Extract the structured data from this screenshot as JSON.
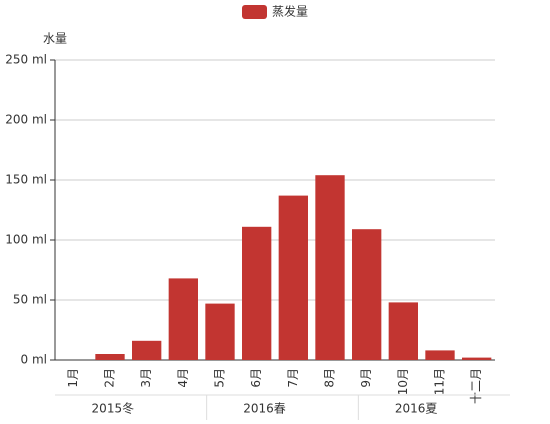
{
  "chart_data": {
    "type": "bar",
    "y_axis_label": "水量",
    "categories": [
      "1月",
      "2月",
      "3月",
      "4月",
      "5月",
      "6月",
      "7月",
      "8月",
      "9月",
      "10月",
      "11月",
      "十二月"
    ],
    "x_groups": [
      "2015冬",
      "2016春",
      "2016夏"
    ],
    "series": [
      {
        "name": "蒸发量",
        "color": "#c23531",
        "values": [
          0,
          5,
          16,
          68,
          47,
          111,
          137,
          154,
          109,
          48,
          8,
          2
        ]
      }
    ],
    "ylim": [
      0,
      250
    ],
    "yticks": [
      {
        "value": 0,
        "label": "0 ml"
      },
      {
        "value": 50,
        "label": "50 ml"
      },
      {
        "value": 100,
        "label": "100 ml"
      },
      {
        "value": 150,
        "label": "150 ml"
      },
      {
        "value": 200,
        "label": "200 ml"
      },
      {
        "value": 250,
        "label": "250 ml"
      }
    ],
    "grid": true
  }
}
